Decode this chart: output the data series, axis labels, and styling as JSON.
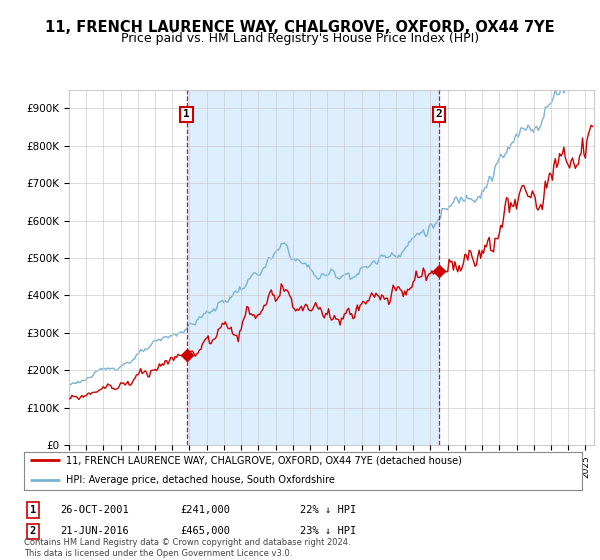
{
  "title": "11, FRENCH LAURENCE WAY, CHALGROVE, OXFORD, OX44 7YE",
  "subtitle": "Price paid vs. HM Land Registry's House Price Index (HPI)",
  "title_fontsize": 10.5,
  "subtitle_fontsize": 9,
  "ylim": [
    0,
    950000
  ],
  "yticks": [
    0,
    100000,
    200000,
    300000,
    400000,
    500000,
    600000,
    700000,
    800000,
    900000
  ],
  "ytick_labels": [
    "£0",
    "£100K",
    "£200K",
    "£300K",
    "£400K",
    "£500K",
    "£600K",
    "£700K",
    "£800K",
    "£900K"
  ],
  "hpi_color": "#7ab3d4",
  "price_color": "#cc0000",
  "shade_color": "#ddeeff",
  "legend_line1": "11, FRENCH LAURENCE WAY, CHALGROVE, OXFORD, OX44 7YE (detached house)",
  "legend_line2": "HPI: Average price, detached house, South Oxfordshire",
  "annotation1_date": "26-OCT-2001",
  "annotation1_price": "£241,000",
  "annotation1_pct": "22% ↓ HPI",
  "annotation2_date": "21-JUN-2016",
  "annotation2_price": "£465,000",
  "annotation2_pct": "23% ↓ HPI",
  "footer": "Contains HM Land Registry data © Crown copyright and database right 2024.\nThis data is licensed under the Open Government Licence v3.0.",
  "background_color": "#ffffff",
  "grid_color": "#cccccc",
  "sale1_year": 2001.833,
  "sale1_price": 241000,
  "sale2_year": 2016.5,
  "sale2_price": 465000
}
